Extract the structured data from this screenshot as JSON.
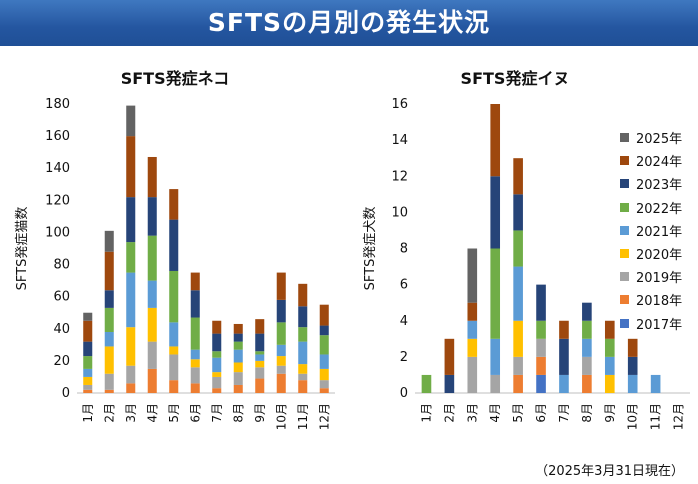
{
  "header": {
    "title": "SFTSの月別の発生状況"
  },
  "footnote": "（2025年3月31日現在）",
  "colors": {
    "2017年": "#4472c4",
    "2018年": "#ed7d31",
    "2019年": "#a5a5a5",
    "2020年": "#ffc000",
    "2021年": "#5b9bd5",
    "2022年": "#70ad47",
    "2023年": "#264478",
    "2024年": "#9e480e",
    "2025年": "#636363"
  },
  "legend": {
    "items": [
      "2025年",
      "2024年",
      "2023年",
      "2022年",
      "2021年",
      "2020年",
      "2019年",
      "2018年",
      "2017年"
    ]
  },
  "chart_data": [
    {
      "type": "bar",
      "stacked": true,
      "title": "SFTS発症ネコ",
      "xlabel": "",
      "ylabel": "SFTS発症猫数",
      "ylim": [
        0,
        180
      ],
      "yticks": [
        "0",
        "20",
        "40",
        "60",
        "80",
        "100",
        "120",
        "140",
        "160",
        "180"
      ],
      "categories": [
        "1月",
        "2月",
        "3月",
        "4月",
        "5月",
        "6月",
        "7月",
        "8月",
        "9月",
        "10月",
        "11月",
        "12月"
      ],
      "series": [
        {
          "name": "2017年",
          "values": [
            0,
            0,
            0,
            0,
            0,
            0,
            0,
            0,
            0,
            0,
            0,
            0
          ]
        },
        {
          "name": "2018年",
          "values": [
            2,
            2,
            6,
            15,
            8,
            6,
            3,
            5,
            9,
            12,
            8,
            3
          ]
        },
        {
          "name": "2019年",
          "values": [
            3,
            10,
            11,
            17,
            16,
            10,
            7,
            8,
            7,
            5,
            4,
            5
          ]
        },
        {
          "name": "2020年",
          "values": [
            5,
            17,
            24,
            21,
            5,
            5,
            3,
            6,
            4,
            6,
            6,
            7
          ]
        },
        {
          "name": "2021年",
          "values": [
            5,
            9,
            34,
            17,
            15,
            6,
            9,
            8,
            4,
            7,
            14,
            9
          ]
        },
        {
          "name": "2022年",
          "values": [
            8,
            15,
            19,
            28,
            32,
            20,
            4,
            5,
            2,
            14,
            9,
            12
          ]
        },
        {
          "name": "2023年",
          "values": [
            9,
            11,
            28,
            24,
            32,
            17,
            11,
            5,
            11,
            14,
            13,
            6
          ]
        },
        {
          "name": "2024年",
          "values": [
            13,
            24,
            38,
            25,
            19,
            11,
            8,
            6,
            9,
            17,
            14,
            13
          ]
        },
        {
          "name": "2025年",
          "values": [
            5,
            13,
            19,
            0,
            0,
            0,
            0,
            0,
            0,
            0,
            0,
            0
          ]
        }
      ]
    },
    {
      "type": "bar",
      "stacked": true,
      "title": "SFTS発症イヌ",
      "xlabel": "",
      "ylabel": "SFTS発症犬数",
      "ylim": [
        0,
        16
      ],
      "yticks": [
        "0",
        "2",
        "4",
        "6",
        "8",
        "10",
        "12",
        "14",
        "16"
      ],
      "categories": [
        "1月",
        "2月",
        "3月",
        "4月",
        "5月",
        "6月",
        "7月",
        "8月",
        "9月",
        "10月",
        "11月",
        "12月"
      ],
      "series": [
        {
          "name": "2017年",
          "values": [
            0,
            0,
            0,
            0,
            0,
            1,
            0,
            0,
            0,
            0,
            0,
            0
          ]
        },
        {
          "name": "2018年",
          "values": [
            0,
            0,
            0,
            0,
            1,
            1,
            0,
            1,
            0,
            0,
            0,
            0
          ]
        },
        {
          "name": "2019年",
          "values": [
            0,
            0,
            2,
            1,
            1,
            1,
            0,
            1,
            0,
            0,
            0,
            0
          ]
        },
        {
          "name": "2020年",
          "values": [
            0,
            0,
            1,
            0,
            2,
            0,
            0,
            0,
            1,
            0,
            0,
            0
          ]
        },
        {
          "name": "2021年",
          "values": [
            0,
            0,
            1,
            2,
            3,
            0,
            1,
            1,
            1,
            1,
            1,
            0
          ]
        },
        {
          "name": "2022年",
          "values": [
            1,
            0,
            0,
            5,
            2,
            1,
            0,
            1,
            1,
            0,
            0,
            0
          ]
        },
        {
          "name": "2023年",
          "values": [
            0,
            1,
            0,
            4,
            2,
            2,
            2,
            1,
            0,
            1,
            0,
            0
          ]
        },
        {
          "name": "2024年",
          "values": [
            0,
            2,
            1,
            4,
            2,
            0,
            1,
            0,
            1,
            1,
            0,
            0
          ]
        },
        {
          "name": "2025年",
          "values": [
            0,
            0,
            3,
            0,
            0,
            0,
            0,
            0,
            0,
            0,
            0,
            0
          ]
        }
      ]
    }
  ]
}
